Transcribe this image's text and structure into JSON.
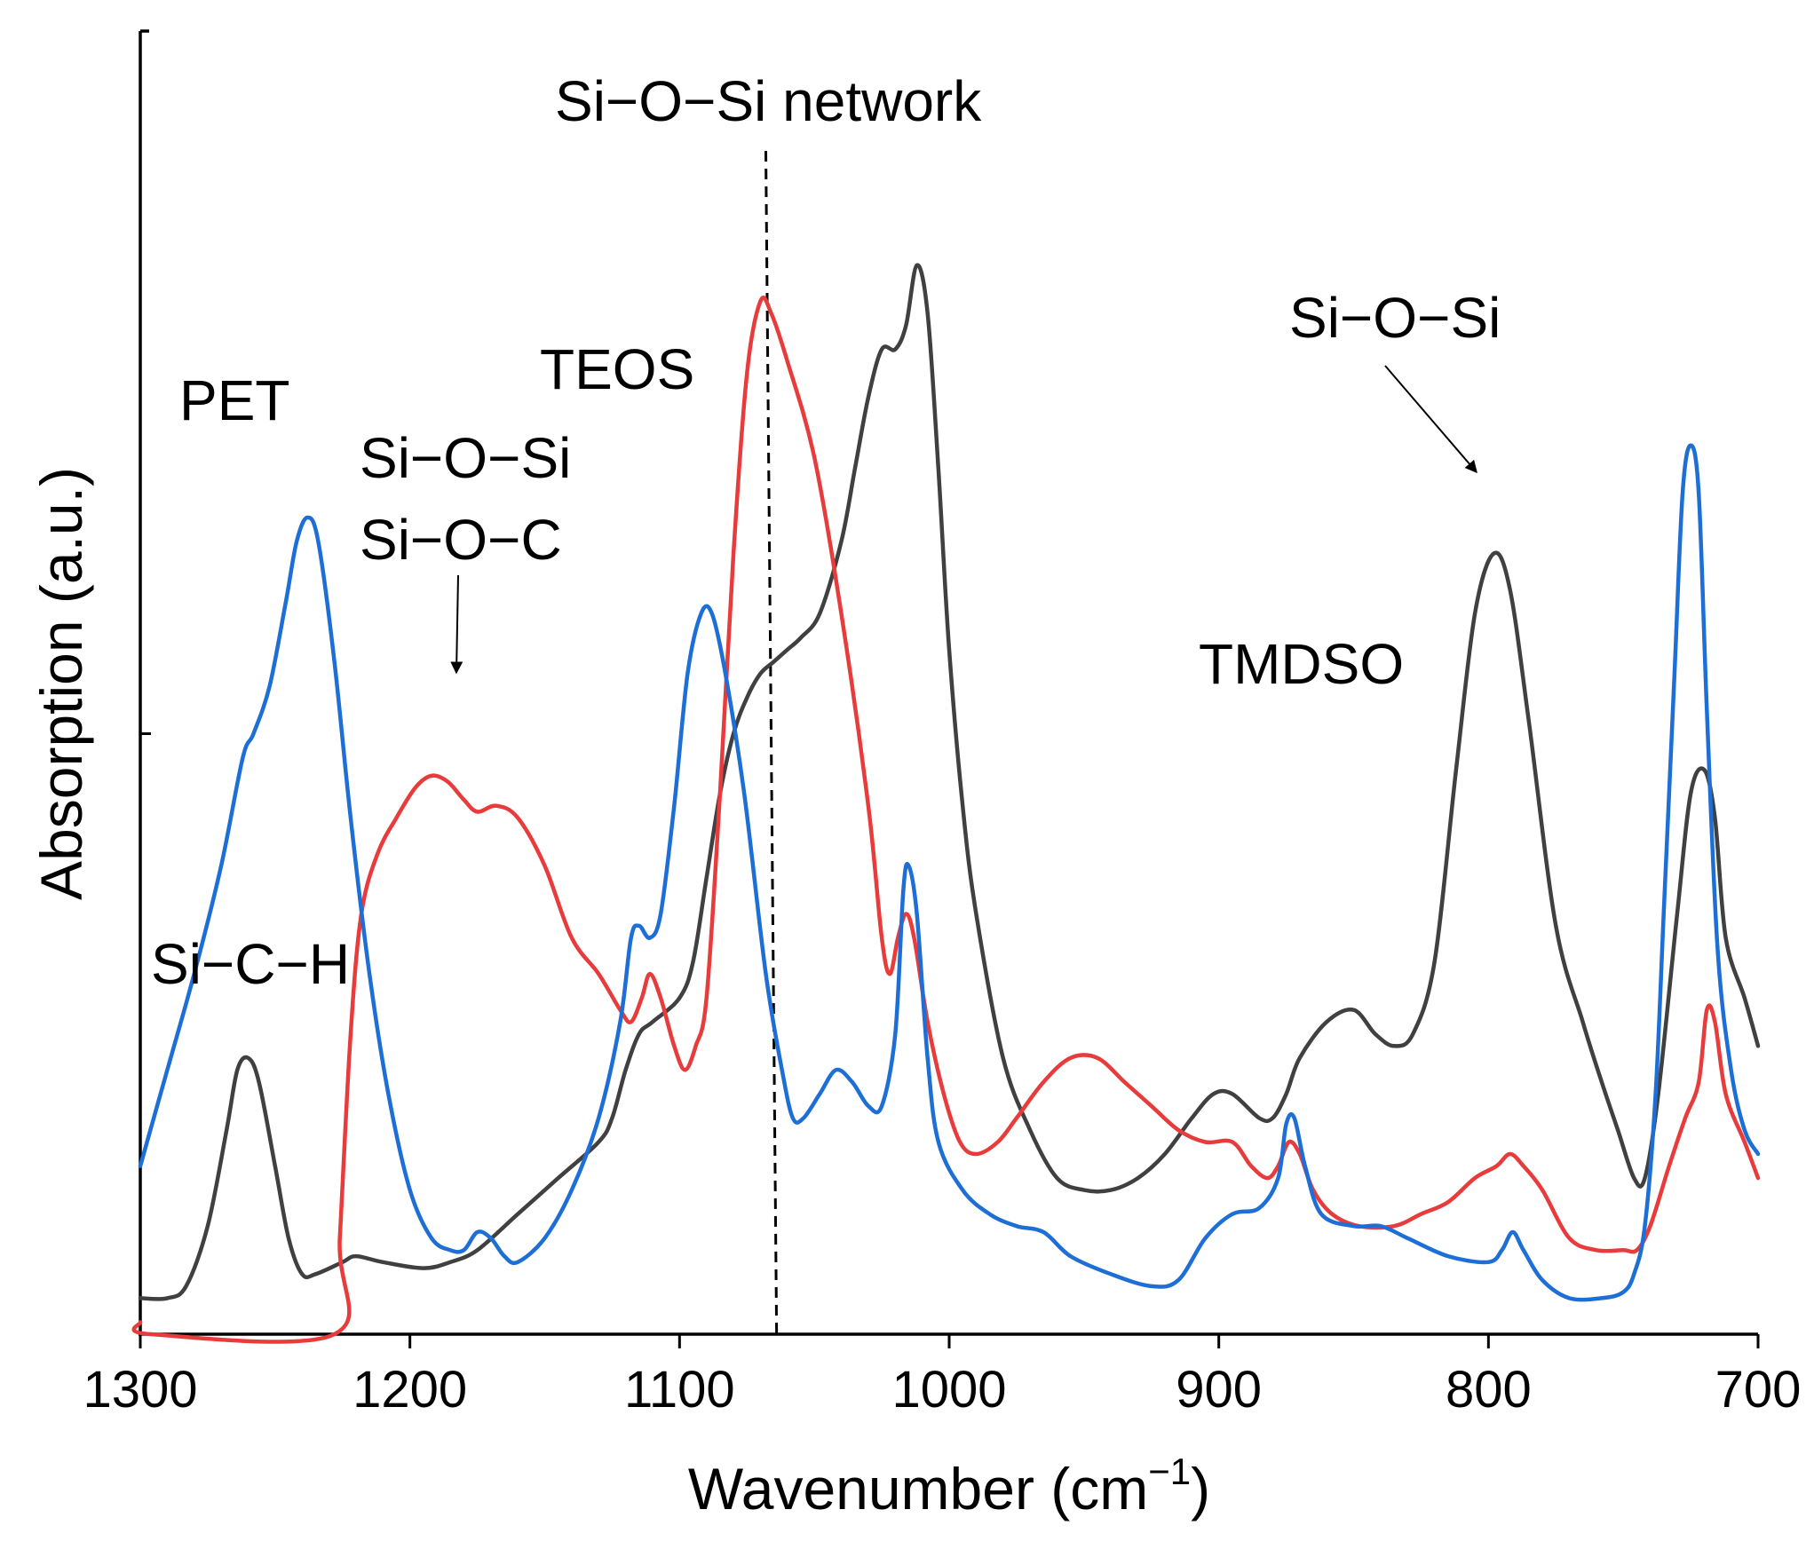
{
  "chart_data": {
    "type": "line",
    "title": "",
    "xlabel": "Wavenumber (cm",
    "xlabel_sup": "−1",
    "xlabel_end": ")",
    "ylabel": "Absorption (a.u.)",
    "xlim": [
      1300,
      700
    ],
    "ylim": [
      0,
      1
    ],
    "x_reversed": true,
    "x_ticks": [
      1300,
      1200,
      1100,
      1000,
      900,
      800,
      700
    ],
    "x_tick_labels": [
      "1300",
      "1200",
      "1100",
      "1000",
      "900",
      "800",
      "700"
    ],
    "y_ticks": [
      0.5
    ],
    "grid": false,
    "legend": "none",
    "series": [
      {
        "name": "TMDSO",
        "color": "#404040",
        "points": [
          [
            1300,
            0.03
          ],
          [
            1290,
            0.03
          ],
          [
            1283,
            0.04
          ],
          [
            1275,
            0.09
          ],
          [
            1268,
            0.17
          ],
          [
            1264,
            0.22
          ],
          [
            1260,
            0.23
          ],
          [
            1256,
            0.21
          ],
          [
            1250,
            0.14
          ],
          [
            1245,
            0.08
          ],
          [
            1240,
            0.05
          ],
          [
            1235,
            0.05
          ],
          [
            1225,
            0.06
          ],
          [
            1220,
            0.065
          ],
          [
            1210,
            0.06
          ],
          [
            1195,
            0.055
          ],
          [
            1185,
            0.06
          ],
          [
            1175,
            0.07
          ],
          [
            1160,
            0.1
          ],
          [
            1145,
            0.13
          ],
          [
            1130,
            0.16
          ],
          [
            1125,
            0.18
          ],
          [
            1120,
            0.22
          ],
          [
            1115,
            0.25
          ],
          [
            1110,
            0.26
          ],
          [
            1100,
            0.28
          ],
          [
            1095,
            0.31
          ],
          [
            1090,
            0.38
          ],
          [
            1085,
            0.45
          ],
          [
            1080,
            0.5
          ],
          [
            1075,
            0.53
          ],
          [
            1070,
            0.55
          ],
          [
            1065,
            0.56
          ],
          [
            1060,
            0.57
          ],
          [
            1055,
            0.58
          ],
          [
            1048,
            0.6
          ],
          [
            1040,
            0.66
          ],
          [
            1035,
            0.72
          ],
          [
            1030,
            0.78
          ],
          [
            1025,
            0.82
          ],
          [
            1020,
            0.82
          ],
          [
            1016,
            0.84
          ],
          [
            1012,
            0.89
          ],
          [
            1008,
            0.85
          ],
          [
            1004,
            0.72
          ],
          [
            1000,
            0.57
          ],
          [
            995,
            0.44
          ],
          [
            990,
            0.35
          ],
          [
            980,
            0.23
          ],
          [
            970,
            0.17
          ],
          [
            960,
            0.13
          ],
          [
            950,
            0.12
          ],
          [
            940,
            0.12
          ],
          [
            930,
            0.13
          ],
          [
            920,
            0.15
          ],
          [
            910,
            0.18
          ],
          [
            902,
            0.2
          ],
          [
            895,
            0.2
          ],
          [
            885,
            0.18
          ],
          [
            880,
            0.18
          ],
          [
            875,
            0.2
          ],
          [
            870,
            0.23
          ],
          [
            860,
            0.26
          ],
          [
            850,
            0.27
          ],
          [
            842,
            0.25
          ],
          [
            835,
            0.24
          ],
          [
            828,
            0.25
          ],
          [
            820,
            0.31
          ],
          [
            812,
            0.47
          ],
          [
            805,
            0.6
          ],
          [
            798,
            0.65
          ],
          [
            792,
            0.62
          ],
          [
            785,
            0.51
          ],
          [
            775,
            0.34
          ],
          [
            765,
            0.26
          ],
          [
            758,
            0.21
          ],
          [
            752,
            0.17
          ],
          [
            746,
            0.13
          ],
          [
            742,
            0.13
          ],
          [
            737,
            0.2
          ],
          [
            730,
            0.35
          ],
          [
            725,
            0.45
          ],
          [
            720,
            0.47
          ],
          [
            716,
            0.43
          ],
          [
            712,
            0.33
          ],
          [
            705,
            0.28
          ],
          [
            700,
            0.24
          ]
        ]
      },
      {
        "name": "TEOS",
        "color": "#e83c3c",
        "points": [
          [
            1300,
            0.01
          ],
          [
            1296,
            0.0
          ],
          [
            1228,
            0.0
          ],
          [
            1226,
            0.08
          ],
          [
            1222,
            0.25
          ],
          [
            1218,
            0.35
          ],
          [
            1212,
            0.4
          ],
          [
            1205,
            0.43
          ],
          [
            1198,
            0.455
          ],
          [
            1192,
            0.465
          ],
          [
            1186,
            0.46
          ],
          [
            1180,
            0.445
          ],
          [
            1175,
            0.435
          ],
          [
            1168,
            0.44
          ],
          [
            1160,
            0.43
          ],
          [
            1150,
            0.39
          ],
          [
            1140,
            0.33
          ],
          [
            1130,
            0.3
          ],
          [
            1122,
            0.27
          ],
          [
            1118,
            0.26
          ],
          [
            1114,
            0.28
          ],
          [
            1111,
            0.3
          ],
          [
            1107,
            0.28
          ],
          [
            1102,
            0.24
          ],
          [
            1098,
            0.22
          ],
          [
            1094,
            0.24
          ],
          [
            1090,
            0.28
          ],
          [
            1085,
            0.45
          ],
          [
            1080,
            0.65
          ],
          [
            1075,
            0.8
          ],
          [
            1070,
            0.86
          ],
          [
            1066,
            0.85
          ],
          [
            1060,
            0.81
          ],
          [
            1050,
            0.73
          ],
          [
            1040,
            0.6
          ],
          [
            1030,
            0.44
          ],
          [
            1025,
            0.33
          ],
          [
            1022,
            0.3
          ],
          [
            1019,
            0.33
          ],
          [
            1016,
            0.35
          ],
          [
            1013,
            0.33
          ],
          [
            1008,
            0.26
          ],
          [
            1002,
            0.2
          ],
          [
            996,
            0.16
          ],
          [
            990,
            0.15
          ],
          [
            982,
            0.16
          ],
          [
            975,
            0.18
          ],
          [
            965,
            0.21
          ],
          [
            955,
            0.23
          ],
          [
            945,
            0.23
          ],
          [
            935,
            0.21
          ],
          [
            925,
            0.19
          ],
          [
            915,
            0.17
          ],
          [
            905,
            0.16
          ],
          [
            895,
            0.16
          ],
          [
            888,
            0.14
          ],
          [
            882,
            0.13
          ],
          [
            878,
            0.14
          ],
          [
            874,
            0.16
          ],
          [
            870,
            0.15
          ],
          [
            865,
            0.12
          ],
          [
            858,
            0.1
          ],
          [
            848,
            0.09
          ],
          [
            835,
            0.09
          ],
          [
            825,
            0.1
          ],
          [
            815,
            0.11
          ],
          [
            805,
            0.13
          ],
          [
            797,
            0.14
          ],
          [
            792,
            0.15
          ],
          [
            787,
            0.14
          ],
          [
            780,
            0.12
          ],
          [
            770,
            0.08
          ],
          [
            760,
            0.07
          ],
          [
            750,
            0.07
          ],
          [
            745,
            0.07
          ],
          [
            740,
            0.09
          ],
          [
            733,
            0.14
          ],
          [
            727,
            0.18
          ],
          [
            722,
            0.21
          ],
          [
            719,
            0.27
          ],
          [
            716,
            0.26
          ],
          [
            712,
            0.2
          ],
          [
            705,
            0.16
          ],
          [
            700,
            0.13
          ]
        ]
      },
      {
        "name": "PET",
        "color": "#1d6fd6",
        "points": [
          [
            1300,
            0.14
          ],
          [
            1290,
            0.22
          ],
          [
            1280,
            0.3
          ],
          [
            1270,
            0.39
          ],
          [
            1262,
            0.48
          ],
          [
            1258,
            0.5
          ],
          [
            1252,
            0.54
          ],
          [
            1246,
            0.61
          ],
          [
            1242,
            0.66
          ],
          [
            1238,
            0.68
          ],
          [
            1234,
            0.66
          ],
          [
            1228,
            0.56
          ],
          [
            1222,
            0.43
          ],
          [
            1215,
            0.3
          ],
          [
            1208,
            0.2
          ],
          [
            1200,
            0.12
          ],
          [
            1192,
            0.08
          ],
          [
            1185,
            0.07
          ],
          [
            1180,
            0.07
          ],
          [
            1175,
            0.085
          ],
          [
            1170,
            0.08
          ],
          [
            1165,
            0.065
          ],
          [
            1160,
            0.06
          ],
          [
            1150,
            0.08
          ],
          [
            1140,
            0.12
          ],
          [
            1130,
            0.18
          ],
          [
            1122,
            0.26
          ],
          [
            1118,
            0.33
          ],
          [
            1115,
            0.34
          ],
          [
            1111,
            0.33
          ],
          [
            1107,
            0.35
          ],
          [
            1102,
            0.44
          ],
          [
            1097,
            0.55
          ],
          [
            1092,
            0.6
          ],
          [
            1088,
            0.6
          ],
          [
            1083,
            0.55
          ],
          [
            1076,
            0.45
          ],
          [
            1068,
            0.3
          ],
          [
            1062,
            0.22
          ],
          [
            1058,
            0.18
          ],
          [
            1054,
            0.18
          ],
          [
            1048,
            0.2
          ],
          [
            1042,
            0.22
          ],
          [
            1036,
            0.21
          ],
          [
            1030,
            0.19
          ],
          [
            1025,
            0.19
          ],
          [
            1020,
            0.25
          ],
          [
            1017,
            0.37
          ],
          [
            1015,
            0.39
          ],
          [
            1012,
            0.35
          ],
          [
            1008,
            0.23
          ],
          [
            1004,
            0.16
          ],
          [
            995,
            0.12
          ],
          [
            985,
            0.1
          ],
          [
            975,
            0.09
          ],
          [
            965,
            0.085
          ],
          [
            955,
            0.065
          ],
          [
            940,
            0.05
          ],
          [
            925,
            0.04
          ],
          [
            915,
            0.045
          ],
          [
            905,
            0.08
          ],
          [
            895,
            0.1
          ],
          [
            885,
            0.105
          ],
          [
            878,
            0.13
          ],
          [
            875,
            0.175
          ],
          [
            872,
            0.18
          ],
          [
            868,
            0.14
          ],
          [
            862,
            0.1
          ],
          [
            850,
            0.09
          ],
          [
            840,
            0.09
          ],
          [
            830,
            0.08
          ],
          [
            815,
            0.065
          ],
          [
            800,
            0.06
          ],
          [
            795,
            0.07
          ],
          [
            791,
            0.085
          ],
          [
            787,
            0.07
          ],
          [
            780,
            0.045
          ],
          [
            770,
            0.03
          ],
          [
            758,
            0.03
          ],
          [
            750,
            0.035
          ],
          [
            746,
            0.05
          ],
          [
            742,
            0.09
          ],
          [
            738,
            0.2
          ],
          [
            735,
            0.35
          ],
          [
            731,
            0.55
          ],
          [
            728,
            0.7
          ],
          [
            725,
            0.74
          ],
          [
            722,
            0.7
          ],
          [
            719,
            0.52
          ],
          [
            715,
            0.32
          ],
          [
            710,
            0.22
          ],
          [
            705,
            0.17
          ],
          [
            700,
            0.15
          ]
        ]
      }
    ],
    "reference_line": {
      "x": 1064,
      "style": "dashed",
      "label": "Si−O−Si network"
    },
    "annotations": {
      "pet": "PET",
      "teos": "TEOS",
      "tmdso": "TMDSO",
      "sioc_line1": "Si−O−Si",
      "sioc_line2": "Si−O−C",
      "sich": "Si−C−H",
      "sios_right": "Si−O−Si"
    }
  }
}
